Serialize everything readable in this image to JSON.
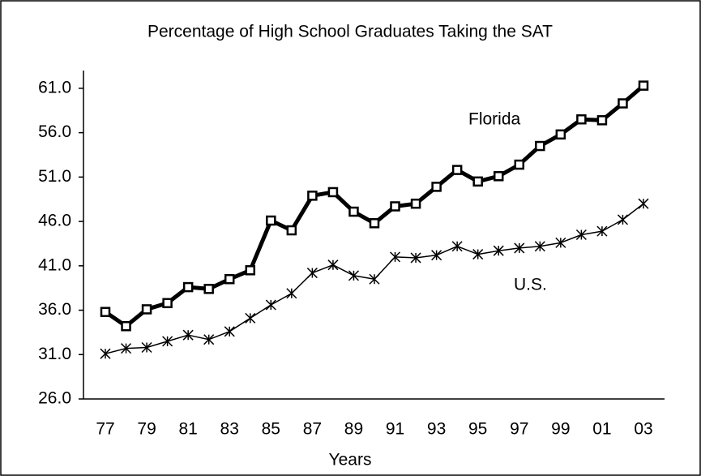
{
  "chart_data": {
    "type": "line",
    "title": "Percentage of High School Graduates Taking the SAT",
    "x_label": "Years",
    "categories": [
      "77",
      null,
      "79",
      null,
      "81",
      null,
      "83",
      null,
      "85",
      null,
      "87",
      null,
      "89",
      null,
      "91",
      null,
      "93",
      null,
      "95",
      null,
      "97",
      null,
      "99",
      null,
      "01",
      null,
      "03"
    ],
    "series": [
      {
        "name": "Florida",
        "color": "#000000",
        "marker": "square",
        "values": [
          35.8,
          34.2,
          36.1,
          36.8,
          38.6,
          38.4,
          39.5,
          40.5,
          46.1,
          45.0,
          48.9,
          49.3,
          47.1,
          45.8,
          47.7,
          48.0,
          49.9,
          51.8,
          50.5,
          51.1,
          52.4,
          54.5,
          55.8,
          57.5,
          57.4,
          59.3,
          61.3
        ]
      },
      {
        "name": "U.S.",
        "color": "#000000",
        "marker": "asterisk",
        "values": [
          31.1,
          31.7,
          31.8,
          32.5,
          33.2,
          32.7,
          33.6,
          35.1,
          36.6,
          37.9,
          40.2,
          41.1,
          39.9,
          39.5,
          42.0,
          41.9,
          42.2,
          43.2,
          42.3,
          42.7,
          43.0,
          43.2,
          43.6,
          44.5,
          44.9,
          46.2,
          48.0
        ]
      }
    ],
    "ylim": [
      26,
      63
    ],
    "yticks": [
      {
        "value": 26,
        "label": "26.0"
      },
      {
        "value": 31,
        "label": "31.0"
      },
      {
        "value": 36,
        "label": "36.0"
      },
      {
        "value": 41,
        "label": "41.0"
      },
      {
        "value": 46,
        "label": "46.0"
      },
      {
        "value": 51,
        "label": "51.0"
      },
      {
        "value": 56,
        "label": "56.0"
      },
      {
        "value": 61,
        "label": "61.0"
      }
    ],
    "grid": false
  }
}
